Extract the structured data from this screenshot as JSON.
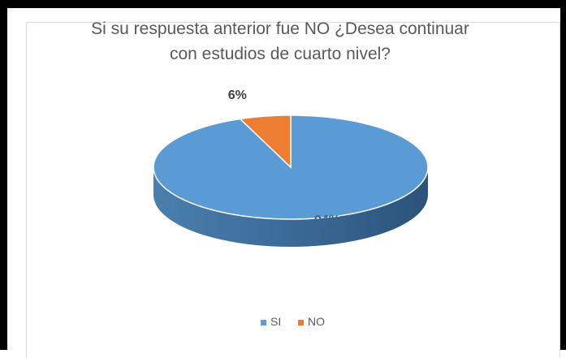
{
  "chart_data": {
    "type": "pie",
    "style": "3d",
    "title_lines": [
      "Si su respuesta anterior fue NO ¿Desea continuar",
      "con estudios de cuarto nivel?"
    ],
    "categories": [
      "SI",
      "NO"
    ],
    "values": [
      94,
      6
    ],
    "data_labels": [
      "94%",
      "6%"
    ],
    "colors": [
      "#5b9bd5",
      "#ed7d31"
    ],
    "legend_position": "bottom"
  }
}
